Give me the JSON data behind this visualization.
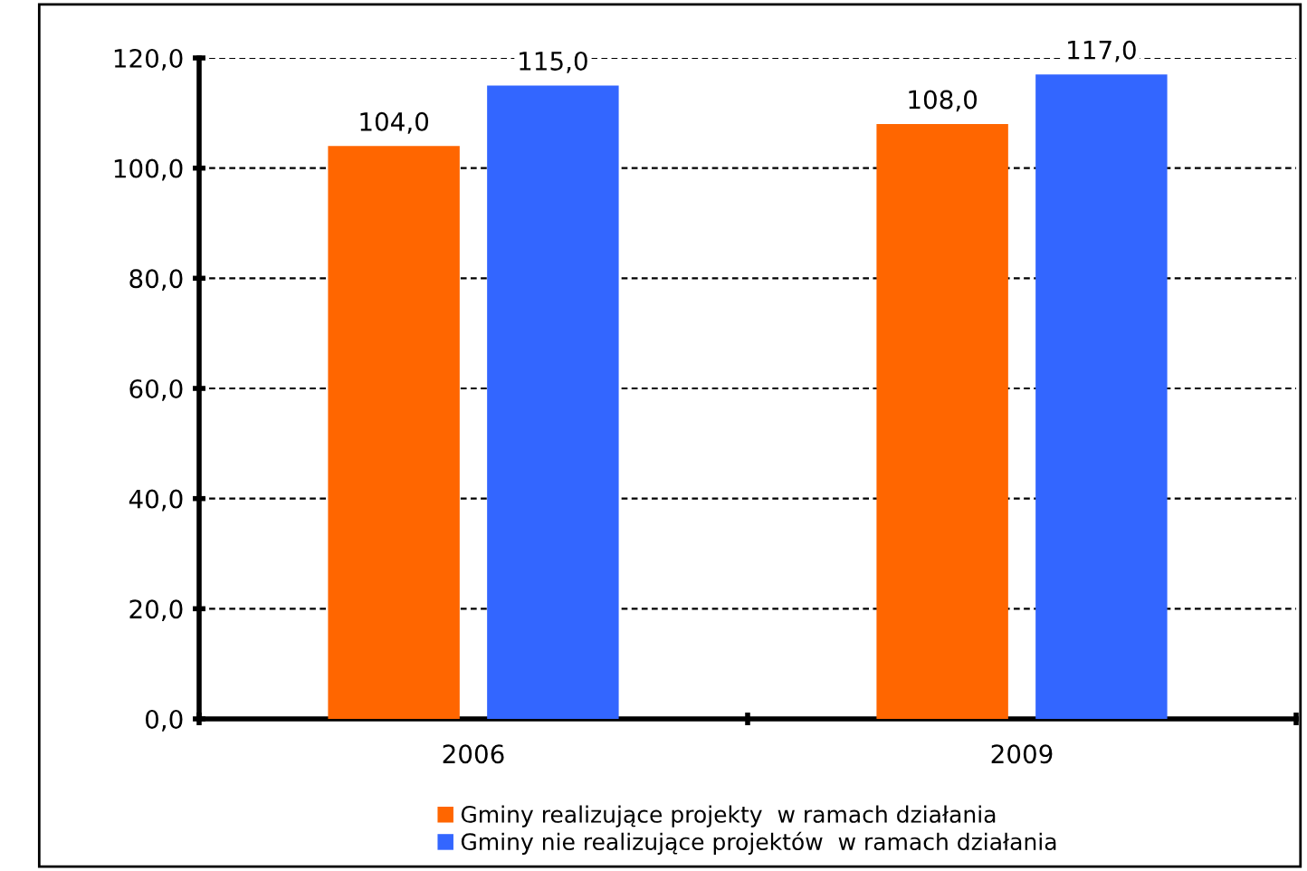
{
  "chart_data": {
    "type": "bar",
    "categories": [
      "2006",
      "2009"
    ],
    "series": [
      {
        "name": "Gminy realizujące projekty  w ramach działania",
        "color": "#ff6600",
        "values": [
          104.0,
          108.0
        ],
        "value_labels": [
          "104,0",
          "108,0"
        ]
      },
      {
        "name": "Gminy nie realizujące projektów  w ramach działania",
        "color": "#3366ff",
        "values": [
          115.0,
          117.0
        ],
        "value_labels": [
          "115,0",
          "117,0"
        ]
      }
    ],
    "ylim": [
      0,
      120
    ],
    "yticks": [
      {
        "value": 0,
        "label": "0,0"
      },
      {
        "value": 20,
        "label": "20,0"
      },
      {
        "value": 40,
        "label": "40,0"
      },
      {
        "value": 60,
        "label": "60,0"
      },
      {
        "value": 80,
        "label": "80,0"
      },
      {
        "value": 100,
        "label": "100,0"
      },
      {
        "value": 120,
        "label": "120,0"
      }
    ],
    "grid": "y",
    "legend": "bottom"
  }
}
